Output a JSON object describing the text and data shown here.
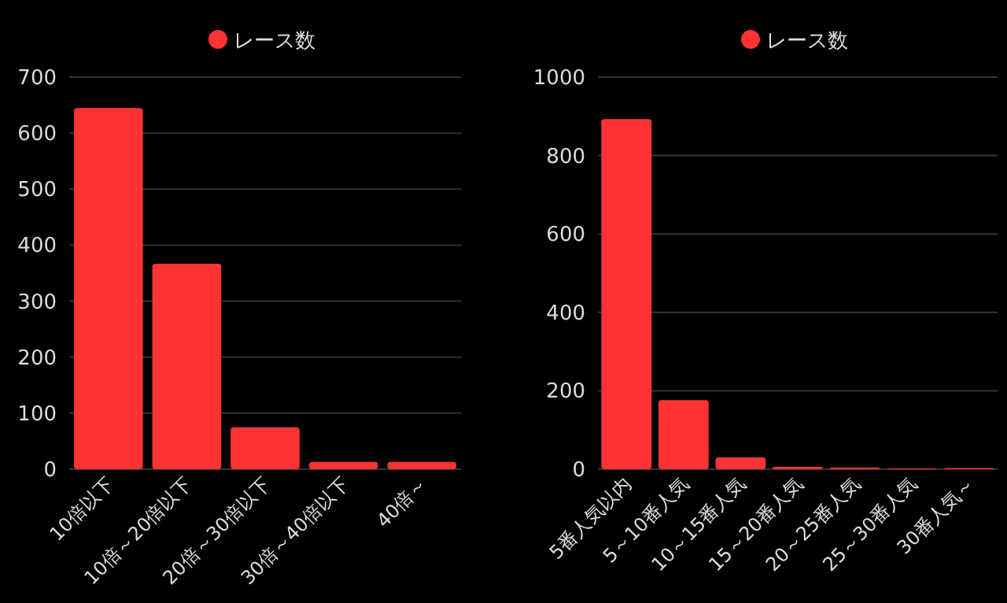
{
  "chart_data": [
    {
      "type": "bar",
      "categories": [
        "10倍以下",
        "10倍～20倍以下",
        "20倍～30倍以下",
        "30倍～40倍以下",
        "40倍～"
      ],
      "series": [
        {
          "name": "レース数",
          "color": "#ff3333",
          "values": [
            645,
            367,
            75,
            13,
            13
          ]
        }
      ],
      "ylim": [
        0,
        700
      ],
      "yticks": [
        0,
        100,
        200,
        300,
        400,
        500,
        600,
        700
      ],
      "grid": "y",
      "legend": "top"
    },
    {
      "type": "bar",
      "categories": [
        "5番人気以内",
        "5～10番人気",
        "10～15番人気",
        "15～20番人気",
        "20～25番人気",
        "25～30番人気",
        "30番人気～"
      ],
      "series": [
        {
          "name": "レース数",
          "color": "#ff3333",
          "values": [
            893,
            176,
            30,
            6,
            4,
            1,
            3
          ]
        }
      ],
      "ylim": [
        0,
        1000
      ],
      "yticks": [
        0,
        200,
        400,
        600,
        800,
        1000
      ],
      "grid": "y",
      "legend": "top"
    }
  ]
}
